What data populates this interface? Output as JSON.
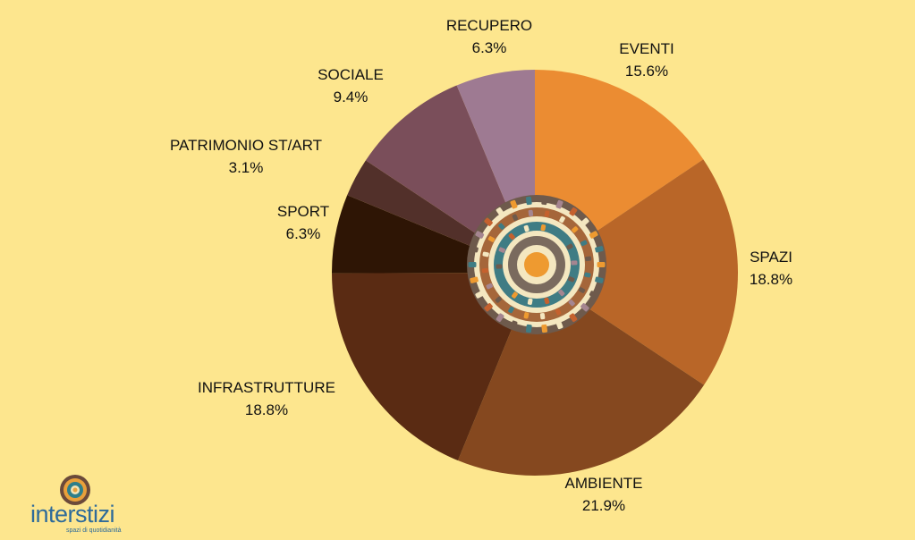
{
  "chart_data": {
    "type": "pie",
    "title": "",
    "slices": [
      {
        "label": "EVENTI",
        "pct_label": "15.6%",
        "value": 15.6,
        "color": "#EB8C32"
      },
      {
        "label": "SPAZI",
        "pct_label": "18.8%",
        "value": 18.8,
        "color": "#B96628"
      },
      {
        "label": "AMBIENTE",
        "pct_label": "21.9%",
        "value": 21.9,
        "color": "#85481F"
      },
      {
        "label": "INFRASTRUTTURE",
        "pct_label": "18.8%",
        "value": 18.8,
        "color": "#5A2B13"
      },
      {
        "label": "SPORT",
        "pct_label": "6.3%",
        "value": 6.3,
        "color": "#2E1505"
      },
      {
        "label": "PATRIMONIO ST/ART",
        "pct_label": "3.1%",
        "value": 3.1,
        "color": "#52302A"
      },
      {
        "label": "SOCIALE",
        "pct_label": "9.4%",
        "value": 9.4,
        "color": "#7A4E5A"
      },
      {
        "label": "RECUPERO",
        "pct_label": "6.3%",
        "value": 6.3,
        "color": "#9E7A92"
      }
    ]
  },
  "logo": {
    "brand": "interstizi",
    "tagline": "spazi di quotidianità"
  }
}
